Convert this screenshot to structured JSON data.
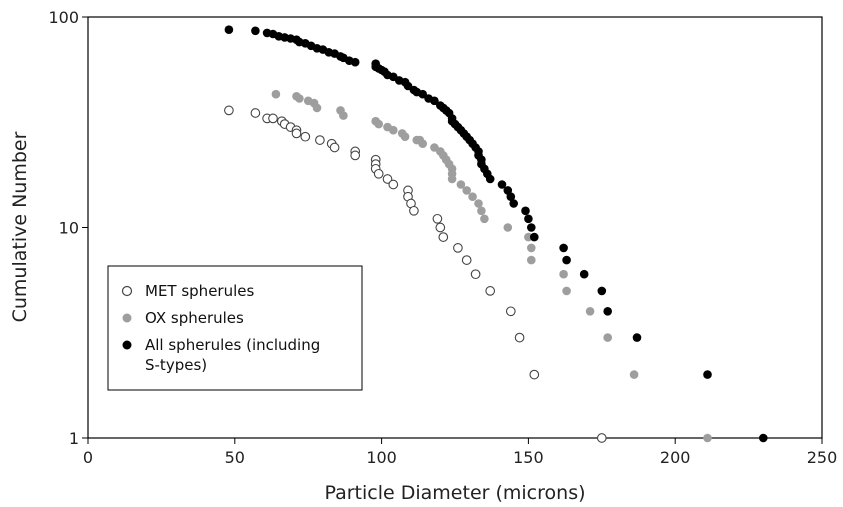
{
  "chart_data": {
    "type": "scatter",
    "title": "",
    "xlabel": "Particle Diameter (microns)",
    "ylabel": "Cumulative Number",
    "xlim": [
      0,
      250
    ],
    "ylim": [
      1,
      100
    ],
    "y_scale": "log",
    "x_ticks": [
      0,
      50,
      100,
      150,
      200,
      250
    ],
    "y_ticks": [
      1,
      10,
      100
    ],
    "grid": false,
    "legend_position": "lower-left",
    "series": [
      {
        "name": "MET spherules",
        "marker": "open-circle",
        "color": "#444444",
        "points": [
          [
            48,
            36
          ],
          [
            57,
            35
          ],
          [
            61,
            33
          ],
          [
            63,
            33
          ],
          [
            66,
            32
          ],
          [
            67,
            31
          ],
          [
            69,
            30
          ],
          [
            71,
            29
          ],
          [
            71,
            28
          ],
          [
            74,
            27
          ],
          [
            79,
            26
          ],
          [
            83,
            25
          ],
          [
            84,
            24
          ],
          [
            91,
            23
          ],
          [
            91,
            22
          ],
          [
            98,
            21
          ],
          [
            98,
            20
          ],
          [
            98,
            19
          ],
          [
            99,
            18
          ],
          [
            102,
            17
          ],
          [
            104,
            16
          ],
          [
            109,
            15
          ],
          [
            109,
            14
          ],
          [
            110,
            13
          ],
          [
            111,
            12
          ],
          [
            119,
            11
          ],
          [
            120,
            10
          ],
          [
            121,
            9
          ],
          [
            126,
            8
          ],
          [
            129,
            7
          ],
          [
            132,
            6
          ],
          [
            137,
            5
          ],
          [
            144,
            4
          ],
          [
            147,
            3
          ],
          [
            152,
            2
          ],
          [
            175,
            1
          ]
        ]
      },
      {
        "name": "OX spherules",
        "marker": "filled-circle",
        "color": "#9e9e9e",
        "points": [
          [
            64,
            43
          ],
          [
            71,
            42
          ],
          [
            72,
            41
          ],
          [
            75,
            40
          ],
          [
            77,
            39
          ],
          [
            78,
            37
          ],
          [
            86,
            36
          ],
          [
            87,
            34
          ],
          [
            98,
            32
          ],
          [
            99,
            31
          ],
          [
            102,
            30
          ],
          [
            104,
            29
          ],
          [
            107,
            28
          ],
          [
            108,
            27
          ],
          [
            112,
            26
          ],
          [
            113,
            26
          ],
          [
            114,
            25
          ],
          [
            118,
            24
          ],
          [
            120,
            23
          ],
          [
            121,
            22
          ],
          [
            122,
            21
          ],
          [
            123,
            20
          ],
          [
            124,
            19
          ],
          [
            124,
            18
          ],
          [
            124,
            17
          ],
          [
            127,
            16
          ],
          [
            129,
            15
          ],
          [
            131,
            14
          ],
          [
            133,
            13
          ],
          [
            134,
            12
          ],
          [
            135,
            11
          ],
          [
            143,
            10
          ],
          [
            150,
            9
          ],
          [
            151,
            8
          ],
          [
            151,
            7
          ],
          [
            162,
            6
          ],
          [
            163,
            5
          ],
          [
            171,
            4
          ],
          [
            177,
            3
          ],
          [
            186,
            2
          ],
          [
            211,
            1
          ]
        ]
      },
      {
        "name": "All spherules (including S-types)",
        "marker": "filled-circle",
        "color": "#000000",
        "points": [
          [
            48,
            87
          ],
          [
            57,
            86
          ],
          [
            61,
            84
          ],
          [
            63,
            83
          ],
          [
            65,
            81
          ],
          [
            67,
            80
          ],
          [
            69,
            79
          ],
          [
            71,
            78
          ],
          [
            72,
            76
          ],
          [
            74,
            75
          ],
          [
            76,
            73
          ],
          [
            78,
            71
          ],
          [
            80,
            70
          ],
          [
            82,
            68
          ],
          [
            84,
            67
          ],
          [
            86,
            65
          ],
          [
            87,
            64
          ],
          [
            89,
            62
          ],
          [
            91,
            61
          ],
          [
            98,
            60
          ],
          [
            98,
            58
          ],
          [
            99,
            57
          ],
          [
            100,
            56
          ],
          [
            101,
            55
          ],
          [
            102,
            53
          ],
          [
            104,
            52
          ],
          [
            106,
            50
          ],
          [
            108,
            49
          ],
          [
            109,
            47
          ],
          [
            111,
            45
          ],
          [
            112,
            44
          ],
          [
            114,
            43
          ],
          [
            116,
            41
          ],
          [
            118,
            40
          ],
          [
            120,
            38
          ],
          [
            121,
            37
          ],
          [
            122,
            36
          ],
          [
            123,
            35
          ],
          [
            124,
            33
          ],
          [
            124,
            32
          ],
          [
            125,
            31
          ],
          [
            126,
            30
          ],
          [
            127,
            29
          ],
          [
            128,
            28
          ],
          [
            129,
            27
          ],
          [
            130,
            26
          ],
          [
            131,
            25
          ],
          [
            132,
            24
          ],
          [
            133,
            23
          ],
          [
            133,
            22
          ],
          [
            134,
            21
          ],
          [
            134,
            20
          ],
          [
            135,
            19
          ],
          [
            136,
            18
          ],
          [
            137,
            17
          ],
          [
            141,
            16
          ],
          [
            143,
            15
          ],
          [
            144,
            14
          ],
          [
            145,
            13
          ],
          [
            149,
            12
          ],
          [
            150,
            11
          ],
          [
            151,
            10
          ],
          [
            152,
            9
          ],
          [
            162,
            8
          ],
          [
            163,
            7
          ],
          [
            169,
            6
          ],
          [
            175,
            5
          ],
          [
            177,
            4
          ],
          [
            187,
            3
          ],
          [
            211,
            2
          ],
          [
            230,
            1
          ]
        ]
      }
    ]
  }
}
